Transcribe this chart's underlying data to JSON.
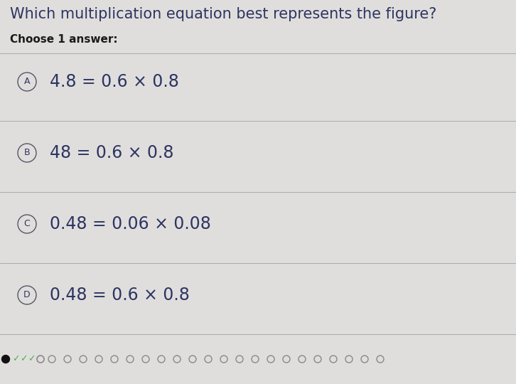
{
  "title": "Which multiplication equation best represents the figure?",
  "subtitle": "Choose 1 answer:",
  "bg_color": "#e0dedd",
  "panel_color": "#dcdad9",
  "options": [
    {
      "label": "A",
      "equation": "4.8 = 0.6 × 0.8"
    },
    {
      "label": "B",
      "equation": "48 = 0.6 × 0.8"
    },
    {
      "label": "C",
      "equation": "0.48 = 0.06 × 0.08"
    },
    {
      "label": "D",
      "equation": "0.48 = 0.6 × 0.8"
    }
  ],
  "title_fontsize": 15,
  "subtitle_fontsize": 11,
  "option_fontsize": 17,
  "label_fontsize": 9,
  "title_color": "#2d3561",
  "subtitle_color": "#1a1a1a",
  "option_text_color": "#2d3561",
  "divider_color": "#aaaaaa",
  "circle_edge_color": "#555566",
  "bottom_bg_color": "#d8d6d5",
  "dot_open_color": "#888888",
  "dot_filled_color": "#333333",
  "check_color": "#4caf50"
}
